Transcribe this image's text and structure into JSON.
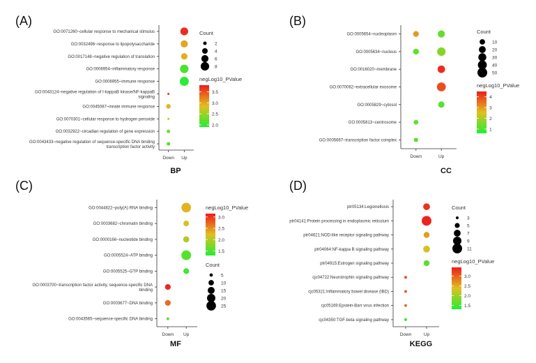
{
  "colors": {
    "low": "#22ee33",
    "mid": "#e0c020",
    "high": "#ee1c1c",
    "axis": "#333333",
    "text": "#333333"
  },
  "legend_titles": {
    "count": "Count",
    "color": "negLog10_PValue"
  },
  "chart_data": [
    {
      "panel_label": "(A)",
      "title": "BP",
      "type": "scatter",
      "x_categories": [
        "Down",
        "Up"
      ],
      "y_categories": [
        "GO:0071260~cellular response to mechanical stimulus",
        "GO:0032496~response to lipopolysaccharide",
        "GO:0017148~negative regulation of translation",
        "GO:0006954~inflammatory response",
        "GO:0006955~immune response",
        "GO:0043124~negative regulation of I-kappaB kinase/NF-kappaB signaling",
        "GO:0045087~innate immune response",
        "GO:0070301~cellular response to hydrogen peroxide",
        "GO:0032922~circadian regulation of gene expression",
        "GO:0043433~negative regulation of sequence-specific DNA binding transcription factor activity"
      ],
      "points": [
        {
          "x": "Up",
          "y": "GO:0071260~cellular response to mechanical stimulus",
          "count": 7,
          "neglog10p": 3.7
        },
        {
          "x": "Up",
          "y": "GO:0032496~response to lipopolysaccharide",
          "count": 6,
          "neglog10p": 3.0
        },
        {
          "x": "Up",
          "y": "GO:0017148~negative regulation of translation",
          "count": 5,
          "neglog10p": 2.95
        },
        {
          "x": "Up",
          "y": "GO:0006954~inflammatory response",
          "count": 8,
          "neglog10p": 2.1
        },
        {
          "x": "Up",
          "y": "GO:0006955~immune response",
          "count": 9,
          "neglog10p": 1.95
        },
        {
          "x": "Down",
          "y": "GO:0043124~negative regulation of I-kappaB kinase/NF-kappaB signaling",
          "count": 1,
          "neglog10p": 3.7
        },
        {
          "x": "Down",
          "y": "GO:0045087~innate immune response",
          "count": 3,
          "neglog10p": 2.9
        },
        {
          "x": "Down",
          "y": "GO:0070301~cellular response to hydrogen peroxide",
          "count": 1,
          "neglog10p": 2.7
        },
        {
          "x": "Down",
          "y": "GO:0032922~circadian regulation of gene expression",
          "count": 2,
          "neglog10p": 2.3
        },
        {
          "x": "Down",
          "y": "GO:0043433~negative regulation of sequence-specific DNA binding transcription factor activity",
          "count": 2,
          "neglog10p": 2.1
        }
      ],
      "size_legend": {
        "title": "Count",
        "values": [
          2,
          4,
          6,
          8
        ]
      },
      "color_legend": {
        "title": "negLog10_PValue",
        "range": [
          1.9,
          3.8
        ],
        "ticks": [
          2.0,
          2.5,
          3.0,
          3.5
        ],
        "tick_labels": [
          "2.0",
          "2.5",
          "3.0",
          "3.5"
        ]
      },
      "legend_order": [
        "size",
        "color"
      ]
    },
    {
      "panel_label": "(B)",
      "title": "CC",
      "type": "scatter",
      "x_categories": [
        "Down",
        "Up"
      ],
      "y_categories": [
        "GO:0005654~nucleoplasm",
        "GO:0005634~nucleus",
        "GO:0016020~membrane",
        "GO:0070062~extracellular exosome",
        "GO:0005829~cytosol",
        "GO:0005813~centrosome",
        "GO:0005667~transcription factor complex"
      ],
      "points": [
        {
          "x": "Down",
          "y": "GO:0005654~nucleoplasm",
          "count": 12,
          "neglog10p": 3.0
        },
        {
          "x": "Up",
          "y": "GO:0005654~nucleoplasm",
          "count": 22,
          "neglog10p": 1.3
        },
        {
          "x": "Down",
          "y": "GO:0005634~nucleus",
          "count": 12,
          "neglog10p": 1.2
        },
        {
          "x": "Up",
          "y": "GO:0005634~nucleus",
          "count": 35,
          "neglog10p": 1.6
        },
        {
          "x": "Up",
          "y": "GO:0016020~membrane",
          "count": 25,
          "neglog10p": 4.3
        },
        {
          "x": "Up",
          "y": "GO:0070062~extracellular exosome",
          "count": 40,
          "neglog10p": 3.9
        },
        {
          "x": "Up",
          "y": "GO:0005829~cytosol",
          "count": 15,
          "neglog10p": 1.1
        },
        {
          "x": "Down",
          "y": "GO:0005813~centrosome",
          "count": 6,
          "neglog10p": 1.2
        },
        {
          "x": "Down",
          "y": "GO:0005667~transcription factor complex",
          "count": 4,
          "neglog10p": 1.1
        }
      ],
      "size_legend": {
        "title": "Count",
        "values": [
          10,
          20,
          30,
          40,
          50
        ]
      },
      "color_legend": {
        "title": "negLog10_PValue",
        "range": [
          0.6,
          4.5
        ],
        "ticks": [
          1,
          2,
          3,
          4
        ],
        "tick_labels": [
          "1",
          "2",
          "3",
          "4"
        ]
      },
      "legend_order": [
        "size",
        "color"
      ]
    },
    {
      "panel_label": "(C)",
      "title": "MF",
      "type": "scatter",
      "x_categories": [
        "Down",
        "Up"
      ],
      "y_categories": [
        "GO:0044822~poly(A) RNA binding",
        "GO:0003682~chromatin binding",
        "GO:0000166~nucleotide binding",
        "GO:0005524~ATP binding",
        "GO:0005525~GTP binding",
        "GO:0003700~transcription factor activity, sequence-specific DNA binding",
        "GO:0003677~DNA binding",
        "GO:0043565~sequence-specific DNA binding"
      ],
      "points": [
        {
          "x": "Up",
          "y": "GO:0044822~poly(A) RNA binding",
          "count": 25,
          "neglog10p": 2.3
        },
        {
          "x": "Up",
          "y": "GO:0003682~chromatin binding",
          "count": 11,
          "neglog10p": 2.2
        },
        {
          "x": "Up",
          "y": "GO:0000166~nucleotide binding",
          "count": 12,
          "neglog10p": 2.0
        },
        {
          "x": "Up",
          "y": "GO:0005524~ATP binding",
          "count": 26,
          "neglog10p": 1.55
        },
        {
          "x": "Up",
          "y": "GO:0005525~GTP binding",
          "count": 11,
          "neglog10p": 1.45
        },
        {
          "x": "Down",
          "y": "GO:0003700~transcription factor activity, sequence-specific DNA binding",
          "count": 11,
          "neglog10p": 3.1
        },
        {
          "x": "Down",
          "y": "GO:0003677~DNA binding",
          "count": 11,
          "neglog10p": 2.7
        },
        {
          "x": "Down",
          "y": "GO:0043565~sequence-specific DNA binding",
          "count": 4,
          "neglog10p": 1.6
        }
      ],
      "size_legend": {
        "title": "Count",
        "values": [
          5,
          10,
          15,
          20,
          25
        ]
      },
      "color_legend": {
        "title": "negLog10_PValue",
        "range": [
          1.3,
          3.15
        ],
        "ticks": [
          1.5,
          2.0,
          2.5,
          3.0
        ],
        "tick_labels": [
          "1.5",
          "2.0",
          "2.5",
          "3.0"
        ]
      },
      "legend_order": [
        "color",
        "size"
      ]
    },
    {
      "panel_label": "(D)",
      "title": "KEGG",
      "type": "scatter",
      "x_categories": [
        "Down",
        "Up"
      ],
      "y_categories": [
        "ptr05134:Legionellosis",
        "ptr04141:Protein processing in endoplasmic reticulum",
        "ptr04621:NOD-like receptor signaling pathway",
        "ptr04064:NF-kappa B signaling pathway",
        "ptr04915:Estrogen signaling pathway",
        "cjc04722:Neurotrophin signaling pathway",
        "cjc05321:Inflammatory bowel disease (IBD)",
        "cjc05169:Epstein-Barr virus infection",
        "cjc04350:TGF-beta signaling pathway"
      ],
      "points": [
        {
          "x": "Up",
          "y": "ptr05134:Legionellosis",
          "count": 7,
          "neglog10p": 3.3
        },
        {
          "x": "Up",
          "y": "ptr04141:Protein processing in endoplasmic reticulum",
          "count": 11,
          "neglog10p": 3.4
        },
        {
          "x": "Up",
          "y": "ptr04621:NOD-like receptor signaling pathway",
          "count": 6,
          "neglog10p": 2.6
        },
        {
          "x": "Up",
          "y": "ptr04064:NF-kappa B signaling pathway",
          "count": 7,
          "neglog10p": 2.3
        },
        {
          "x": "Up",
          "y": "ptr04915:Estrogen signaling pathway",
          "count": 6,
          "neglog10p": 1.6
        },
        {
          "x": "Down",
          "y": "cjc04722:Neurotrophin signaling pathway",
          "count": 3,
          "neglog10p": 3.1
        },
        {
          "x": "Down",
          "y": "cjc05321:Inflammatory bowel disease (IBD)",
          "count": 3,
          "neglog10p": 3.0
        },
        {
          "x": "Down",
          "y": "cjc05169:Epstein-Barr virus infection",
          "count": 3,
          "neglog10p": 2.9
        },
        {
          "x": "Down",
          "y": "cjc04350:TGF-beta signaling pathway",
          "count": 3,
          "neglog10p": 1.4
        }
      ],
      "size_legend": {
        "title": "Count",
        "values": [
          3,
          5,
          7,
          9,
          11
        ]
      },
      "color_legend": {
        "title": "negLog10_PValue",
        "range": [
          1.3,
          3.45
        ],
        "ticks": [
          1.5,
          2.0,
          2.5,
          3.0
        ],
        "tick_labels": [
          "1.5",
          "2.0",
          "2.5",
          "3.0"
        ]
      },
      "legend_order": [
        "size",
        "color"
      ]
    }
  ]
}
